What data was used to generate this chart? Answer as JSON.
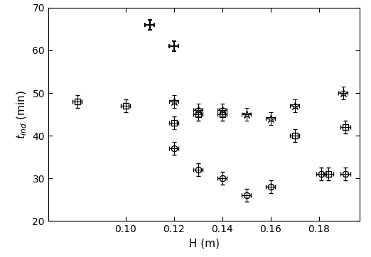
{
  "xlabel": "H (m)",
  "ylabel": "t_ind (min)",
  "xlim": [
    0.068,
    0.197
  ],
  "ylim": [
    20,
    70
  ],
  "xticks": [
    0.1,
    0.12,
    0.14,
    0.16,
    0.18
  ],
  "yticks": [
    20,
    30,
    40,
    50,
    60,
    70
  ],
  "series": [
    {
      "label": "plus_series",
      "marker": "+",
      "markersize": 9,
      "markeredgewidth": 1.5,
      "color": "#000000",
      "x": [
        0.11,
        0.12
      ],
      "y": [
        66.0,
        61.0
      ],
      "xerr": [
        0.002,
        0.002
      ],
      "yerr": [
        1.2,
        1.2
      ]
    },
    {
      "label": "square_series",
      "marker": "s",
      "markersize": 6,
      "markeredgewidth": 1.0,
      "color": "#000000",
      "x": [
        0.08,
        0.1,
        0.12,
        0.13,
        0.14,
        0.17,
        0.184,
        0.191
      ],
      "y": [
        48.0,
        47.0,
        43.0,
        45.0,
        45.0,
        40.0,
        31.0,
        42.0
      ],
      "xerr": [
        0.002,
        0.002,
        0.002,
        0.002,
        0.002,
        0.002,
        0.002,
        0.002
      ],
      "yerr": [
        1.5,
        1.5,
        1.5,
        1.5,
        1.5,
        1.5,
        1.5,
        1.5
      ]
    },
    {
      "label": "star_series",
      "marker": "*",
      "markersize": 9,
      "markeredgewidth": 0.8,
      "color": "#000000",
      "x": [
        0.12,
        0.13,
        0.14,
        0.15,
        0.16,
        0.17,
        0.19
      ],
      "y": [
        48.0,
        46.0,
        46.0,
        45.0,
        44.0,
        47.0,
        50.0
      ],
      "xerr": [
        0.002,
        0.002,
        0.002,
        0.002,
        0.002,
        0.002,
        0.002
      ],
      "yerr": [
        1.5,
        1.5,
        1.5,
        1.5,
        1.5,
        1.5,
        1.5
      ]
    },
    {
      "label": "circle_series",
      "marker": "o",
      "markersize": 6,
      "markeredgewidth": 1.0,
      "color": "#000000",
      "x": [
        0.12,
        0.13,
        0.14,
        0.15,
        0.16,
        0.181,
        0.191
      ],
      "y": [
        37.0,
        32.0,
        30.0,
        26.0,
        28.0,
        31.0,
        31.0
      ],
      "xerr": [
        0.002,
        0.002,
        0.002,
        0.002,
        0.002,
        0.002,
        0.002
      ],
      "yerr": [
        1.5,
        1.5,
        1.5,
        1.5,
        1.5,
        1.5,
        1.5
      ]
    }
  ]
}
